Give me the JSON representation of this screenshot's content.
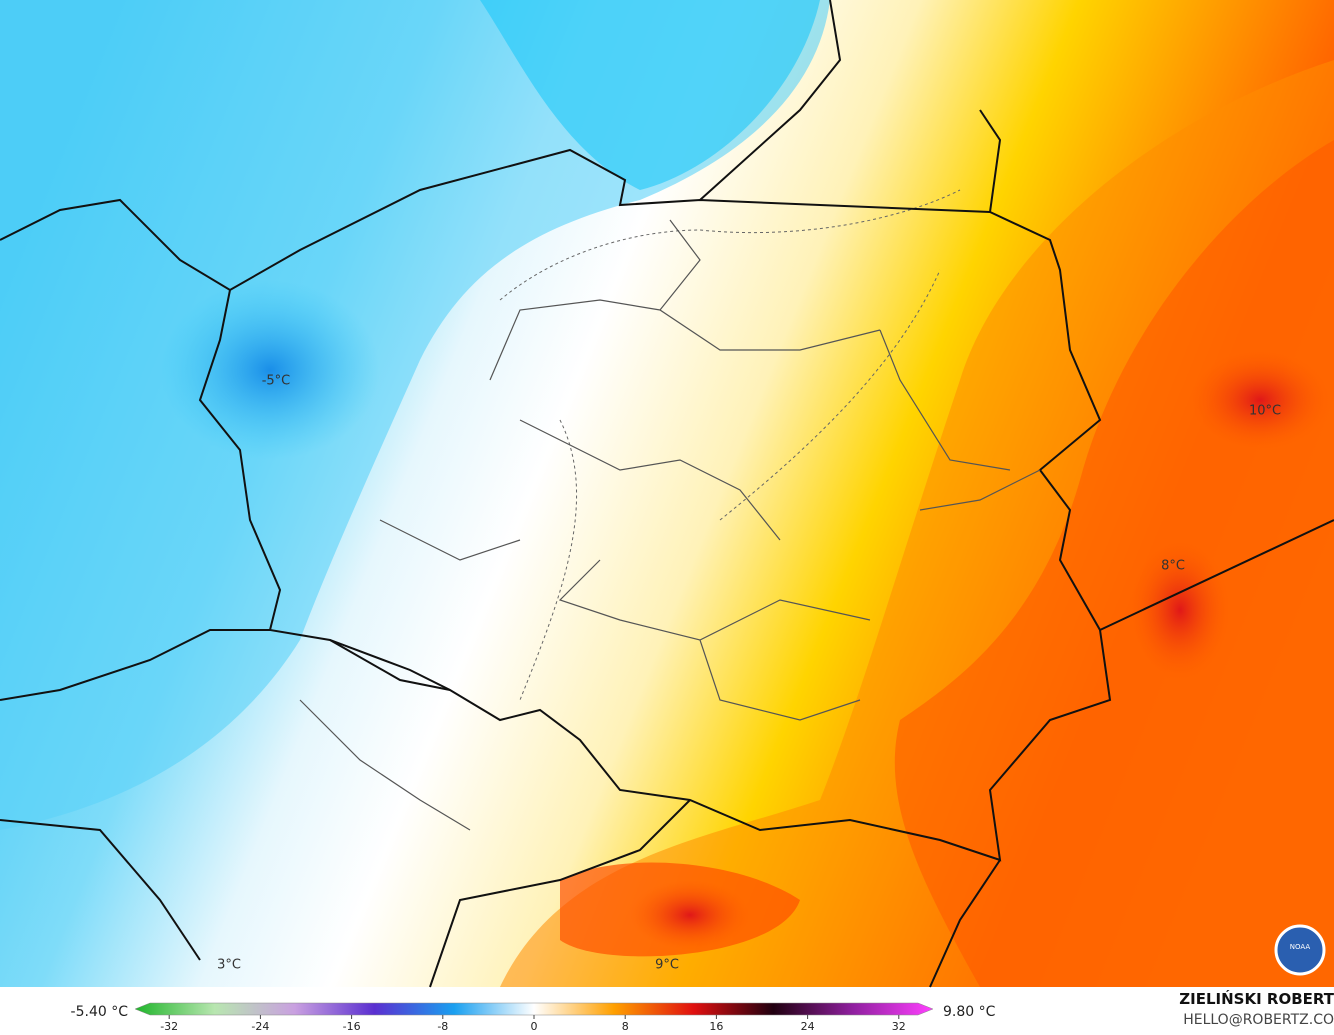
{
  "map": {
    "labels": [
      {
        "text": "-5°C"
      },
      {
        "text": "10°C"
      },
      {
        "text": "8°C"
      },
      {
        "text": "3°C"
      },
      {
        "text": "9°C"
      }
    ]
  },
  "colorbar": {
    "min_label": "-5.40 °C",
    "max_label": "9.80 °C",
    "ticks": [
      -32,
      -24,
      -16,
      -8,
      0,
      8,
      16,
      24,
      32
    ],
    "range": [
      -35,
      35
    ]
  },
  "credit": {
    "author": "ZIELIŃSKI ROBERT",
    "email": "HELLO@ROBERTZ.CO",
    "logo": "NOAA"
  }
}
